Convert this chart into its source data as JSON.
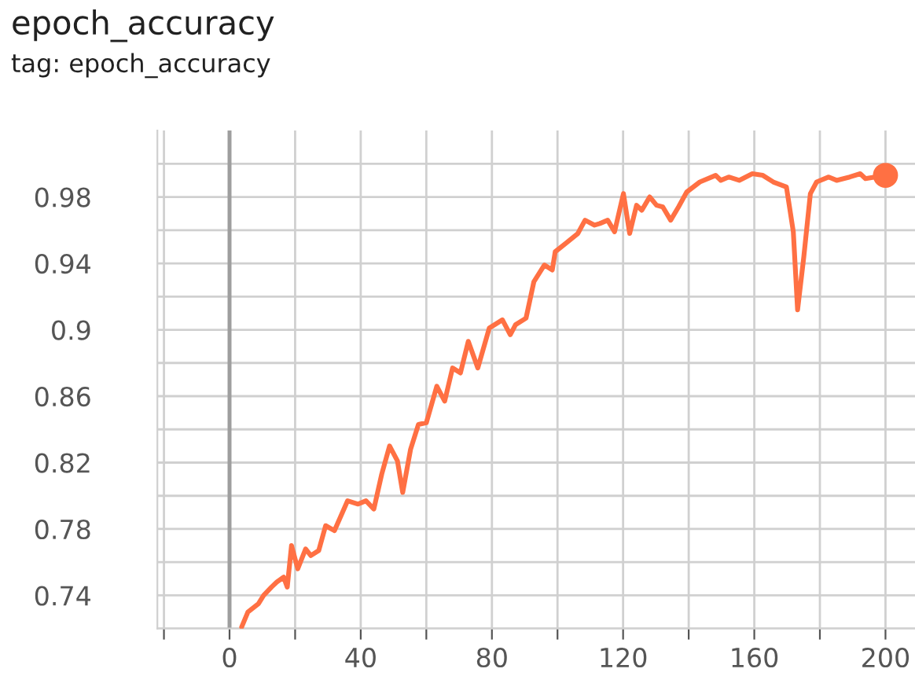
{
  "chart_data": {
    "type": "line",
    "title": "epoch_accuracy",
    "subtitle": "tag: epoch_accuracy",
    "xlim": [
      -22,
      209
    ],
    "ylim": [
      0.72,
      1.02
    ],
    "xticks": [
      {
        "value": -20,
        "label": null
      },
      0,
      {
        "value": 20,
        "label": null
      },
      40,
      {
        "value": 60,
        "label": null
      },
      80,
      {
        "value": 100,
        "label": null
      },
      120,
      {
        "value": 140,
        "label": null
      },
      160,
      {
        "value": 180,
        "label": null
      },
      200
    ],
    "yticks": [
      {
        "value": 0.72,
        "label": null
      },
      0.74,
      {
        "value": 0.76,
        "label": null
      },
      0.78,
      {
        "value": 0.8,
        "label": null
      },
      0.82,
      {
        "value": 0.84,
        "label": null
      },
      0.86,
      {
        "value": 0.88,
        "label": null
      },
      0.9,
      {
        "value": 0.92,
        "label": null
      },
      0.94,
      {
        "value": 0.96,
        "label": null
      },
      0.98,
      {
        "value": 1.0,
        "label": null
      }
    ],
    "grid": true,
    "line_style": "solid",
    "ref_lines": [
      {
        "axis": "x",
        "value": 0,
        "color": "#9e9e9e"
      }
    ],
    "series": [
      {
        "color": "#ff7043",
        "x": [
          3.7,
          5.6,
          8.8,
          10.4,
          12.8,
          14.4,
          16.5,
          17.6,
          18.9,
          20.8,
          23.2,
          24.8,
          27.2,
          29.3,
          32,
          36,
          39.2,
          41.6,
          44,
          46.4,
          48.8,
          51.2,
          52.8,
          55.2,
          57.6,
          60,
          63.2,
          65.6,
          68,
          70.4,
          72.8,
          75.7,
          79.2,
          83.2,
          85.6,
          87.2,
          90.4,
          92.8,
          96,
          98.4,
          99.3,
          102.5,
          106.2,
          108.4,
          111.3,
          112.9,
          115.3,
          117.4,
          120.1,
          122,
          124.1,
          125.7,
          128.1,
          130.2,
          132.1,
          134.5,
          136.9,
          139.4,
          143.4,
          148.2,
          149.8,
          152.2,
          155.4,
          159.4,
          162.6,
          165.8,
          169.8,
          171.9,
          173.2,
          175.1,
          177.1,
          179,
          182.7,
          185.1,
          189.1,
          192.3,
          193.9,
          200
        ],
        "values": [
          0.721,
          0.73,
          0.735,
          0.74,
          0.745,
          0.748,
          0.751,
          0.745,
          0.77,
          0.756,
          0.768,
          0.764,
          0.767,
          0.782,
          0.779,
          0.797,
          0.795,
          0.797,
          0.792,
          0.813,
          0.83,
          0.821,
          0.802,
          0.828,
          0.843,
          0.844,
          0.866,
          0.857,
          0.877,
          0.874,
          0.893,
          0.877,
          0.901,
          0.906,
          0.897,
          0.903,
          0.907,
          0.929,
          0.939,
          0.936,
          0.947,
          0.952,
          0.958,
          0.966,
          0.963,
          0.964,
          0.966,
          0.959,
          0.982,
          0.958,
          0.975,
          0.972,
          0.98,
          0.975,
          0.974,
          0.966,
          0.974,
          0.983,
          0.989,
          0.993,
          0.99,
          0.992,
          0.99,
          0.994,
          0.993,
          0.989,
          0.986,
          0.959,
          0.912,
          0.944,
          0.982,
          0.989,
          0.992,
          0.99,
          0.992,
          0.994,
          0.991,
          0.993
        ]
      },
      {
        "type": "scatter",
        "color": "#ff7043",
        "marker": "circle",
        "x": [
          200
        ],
        "values": [
          0.993
        ]
      }
    ]
  }
}
